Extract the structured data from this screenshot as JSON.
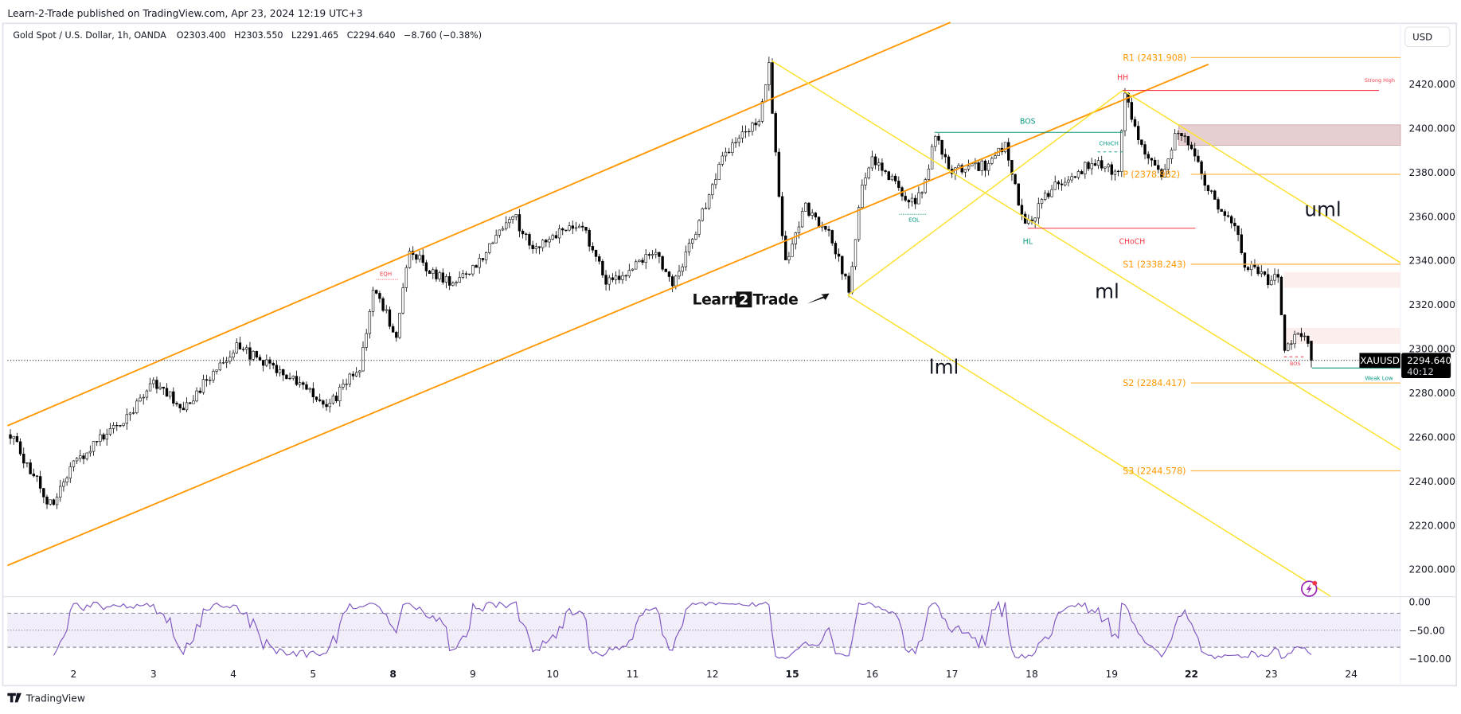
{
  "publish_line": "Learn-2-Trade published on TradingView.com, Apr 23, 2024 12:19 UTC+3",
  "legend": {
    "symbol": "Gold Spot / U.S. Dollar, 1h, OANDA",
    "open": "O2303.400",
    "high": "H2303.550",
    "low": "L2291.465",
    "close": "C2294.640",
    "change": "−8.760 (−0.38%)"
  },
  "currency_button": "USD",
  "watermark_logo": "Learn2Trade",
  "footer_brand": "TradingView",
  "colors": {
    "up_body": "#ffffff",
    "down_body": "#000000",
    "channel": "#ff9800",
    "pitchfork": "#fbe232",
    "pivot": "#ffb74d",
    "bearish": "#f23645",
    "bullish": "#089981",
    "oscillator": "#7e57c2"
  },
  "chart_data": {
    "type": "candlestick",
    "timeframe": "1h",
    "last_bar": {
      "open": 2303.4,
      "high": 2303.55,
      "low": 2291.465,
      "close": 2294.64
    },
    "trading_days": [
      "04-01",
      "04-02",
      "04-03",
      "04-04",
      "04-05",
      "04-08",
      "04-09",
      "04-10",
      "04-11",
      "04-12",
      "04-15",
      "04-16",
      "04-17",
      "04-18",
      "04-19",
      "04-22",
      "04-23",
      "04-24"
    ],
    "price_path": [
      [
        "04-01 05",
        2261
      ],
      [
        "04-01 17",
        2229
      ],
      [
        "04-02 00",
        2248
      ],
      [
        "04-02 17",
        2271
      ],
      [
        "04-03 00",
        2284
      ],
      [
        "04-03 10",
        2273
      ],
      [
        "04-03 18",
        2290
      ],
      [
        "04-04 01",
        2301
      ],
      [
        "04-04 14",
        2290
      ],
      [
        "04-04 23",
        2282
      ],
      [
        "04-05 04",
        2273
      ],
      [
        "04-05 14",
        2292
      ],
      [
        "04-05 18",
        2326
      ],
      [
        "04-08 01",
        2307
      ],
      [
        "04-08 05",
        2345
      ],
      [
        "04-08 13",
        2333
      ],
      [
        "04-08 19",
        2330
      ],
      [
        "04-09 04",
        2343
      ],
      [
        "04-09 12",
        2362
      ],
      [
        "04-09 18",
        2343
      ],
      [
        "04-10 02",
        2354
      ],
      [
        "04-10 09",
        2356
      ],
      [
        "04-10 16",
        2330
      ],
      [
        "04-11 00",
        2337
      ],
      [
        "04-11 07",
        2345
      ],
      [
        "04-11 12",
        2328
      ],
      [
        "04-11 20",
        2358
      ],
      [
        "04-12 04",
        2390
      ],
      [
        "04-12 10",
        2398
      ],
      [
        "04-12 14",
        2402
      ],
      [
        "04-12 17",
        2428
      ],
      [
        "04-12 20",
        2368
      ],
      [
        "04-12 22",
        2339
      ],
      [
        "04-15 04",
        2364
      ],
      [
        "04-15 11",
        2352
      ],
      [
        "04-15 17",
        2327
      ],
      [
        "04-15 21",
        2375
      ],
      [
        "04-16 00",
        2385
      ],
      [
        "04-16 08",
        2373
      ],
      [
        "04-16 11",
        2366
      ],
      [
        "04-16 15",
        2369
      ],
      [
        "04-16 19",
        2396
      ],
      [
        "04-16 23",
        2381
      ],
      [
        "04-17 11",
        2383
      ],
      [
        "04-17 16",
        2392
      ],
      [
        "04-17 21",
        2360
      ],
      [
        "04-17 23",
        2356
      ],
      [
        "04-18 06",
        2373
      ],
      [
        "04-18 12",
        2379
      ],
      [
        "04-18 20",
        2385
      ],
      [
        "04-19 02",
        2379
      ],
      [
        "04-19 04",
        2417
      ],
      [
        "04-19 09",
        2390
      ],
      [
        "04-19 15",
        2377
      ],
      [
        "04-19 20",
        2400
      ],
      [
        "04-22 02",
        2383
      ],
      [
        "04-22 09",
        2360
      ],
      [
        "04-22 13",
        2356
      ],
      [
        "04-22 16",
        2339
      ],
      [
        "04-22 23",
        2330
      ],
      [
        "04-23 02",
        2333
      ],
      [
        "04-23 04",
        2298
      ],
      [
        "04-23 07",
        2307
      ],
      [
        "04-23 10",
        2305
      ],
      [
        "04-23 12",
        2294.64
      ]
    ],
    "y_ticks": [
      "2420.000",
      "2400.000",
      "2380.000",
      "2360.000",
      "2340.000",
      "2320.000",
      "2300.000",
      "2280.000",
      "2260.000",
      "2240.000",
      "2220.000",
      "2200.000"
    ],
    "y_tick_values": [
      2420,
      2400,
      2380,
      2360,
      2340,
      2320,
      2300,
      2280,
      2260,
      2240,
      2220,
      2200
    ],
    "x_ticks": [
      {
        "label": "2",
        "date": "04-02",
        "bold": false
      },
      {
        "label": "3",
        "date": "04-03",
        "bold": false
      },
      {
        "label": "4",
        "date": "04-04",
        "bold": false
      },
      {
        "label": "5",
        "date": "04-05",
        "bold": false
      },
      {
        "label": "8",
        "date": "04-08",
        "bold": true
      },
      {
        "label": "9",
        "date": "04-09",
        "bold": false
      },
      {
        "label": "10",
        "date": "04-10",
        "bold": false
      },
      {
        "label": "11",
        "date": "04-11",
        "bold": false
      },
      {
        "label": "12",
        "date": "04-12",
        "bold": false
      },
      {
        "label": "15",
        "date": "04-15",
        "bold": true
      },
      {
        "label": "16",
        "date": "04-16",
        "bold": false
      },
      {
        "label": "17",
        "date": "04-17",
        "bold": false
      },
      {
        "label": "18",
        "date": "04-18",
        "bold": false
      },
      {
        "label": "19",
        "date": "04-19",
        "bold": false
      },
      {
        "label": "22",
        "date": "04-22",
        "bold": true
      },
      {
        "label": "23",
        "date": "04-23",
        "bold": false
      },
      {
        "label": "24",
        "date": "04-24",
        "bold": false
      }
    ],
    "pivots": [
      {
        "label": "R1 (2431.908)",
        "value": 2431.908
      },
      {
        "label": "P (2378.982)",
        "value": 2378.982
      },
      {
        "label": "S1 (2338.243)",
        "value": 2338.243
      },
      {
        "label": "S2 (2284.417)",
        "value": 2284.417
      },
      {
        "label": "S3 (2244.578)",
        "value": 2244.578
      }
    ],
    "annotations": {
      "hh": "HH",
      "strong_high": "Strong High",
      "bos": "BOS",
      "choch_small": "CHoCH",
      "choch": "CHoCH",
      "hl": "HL",
      "eql": "EQL",
      "eqh": "EQH",
      "bos_small": "BOS",
      "weak_low": "Weak Low",
      "uml": "uml",
      "ml": "ml",
      "lml": "lml"
    },
    "current_price": {
      "symbol": "XAUUSD",
      "price": "2294.640",
      "countdown": "40:12",
      "value": 2294.64
    },
    "oscillator": {
      "type": "Williams %R",
      "period": 14,
      "y_ticks": [
        "0.00",
        "−50.00",
        "−100.00"
      ],
      "y_tick_values": [
        0,
        -50,
        -100
      ],
      "bands": [
        -20,
        -50,
        -80
      ],
      "ylim": [
        -100,
        0
      ]
    }
  }
}
